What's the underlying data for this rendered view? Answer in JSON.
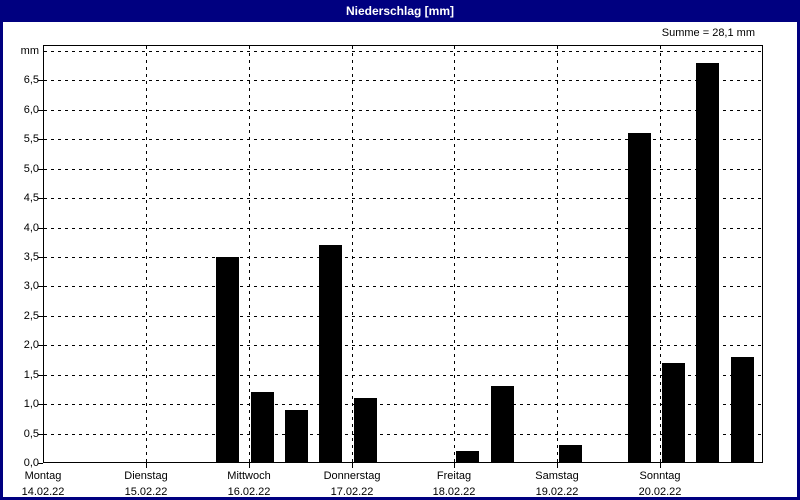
{
  "window": {
    "title": "Niederschlag [mm]"
  },
  "colors": {
    "titlebar": "#000080",
    "window_border": "#000080",
    "bar": "#000000",
    "background": "#ffffff",
    "grid": "#000000"
  },
  "chart_data": {
    "type": "bar",
    "title": "Niederschlag [mm]",
    "ylabel": "mm",
    "unit_label": "mm",
    "ylim": [
      0,
      7
    ],
    "ytick_step": 0.5,
    "ytick_labels": [
      "0,0",
      "0,5",
      "1,0",
      "1,5",
      "2,0",
      "2,5",
      "3,0",
      "3,5",
      "4,0",
      "4,5",
      "5,0",
      "5,5",
      "6,0",
      "6,5"
    ],
    "grid": "dashed",
    "bars_per_day": 3,
    "sum_label": "Summe = 28,1 mm",
    "sum_mm": 28.1,
    "days": [
      {
        "name": "Montag",
        "date": "14.02.22",
        "values": [
          0,
          0,
          0
        ]
      },
      {
        "name": "Dienstag",
        "date": "15.02.22",
        "values": [
          0,
          0,
          3.5
        ]
      },
      {
        "name": "Mittwoch",
        "date": "16.02.22",
        "values": [
          1.2,
          0.9,
          3.7
        ]
      },
      {
        "name": "Donnerstag",
        "date": "17.02.22",
        "values": [
          1.1,
          0,
          0
        ]
      },
      {
        "name": "Freitag",
        "date": "18.02.22",
        "values": [
          0.2,
          1.3,
          0
        ]
      },
      {
        "name": "Samstag",
        "date": "19.02.22",
        "values": [
          0.3,
          0,
          5.6
        ]
      },
      {
        "name": "Sonntag",
        "date": "20.02.22",
        "values": [
          1.7,
          6.8,
          1.8
        ]
      }
    ]
  }
}
